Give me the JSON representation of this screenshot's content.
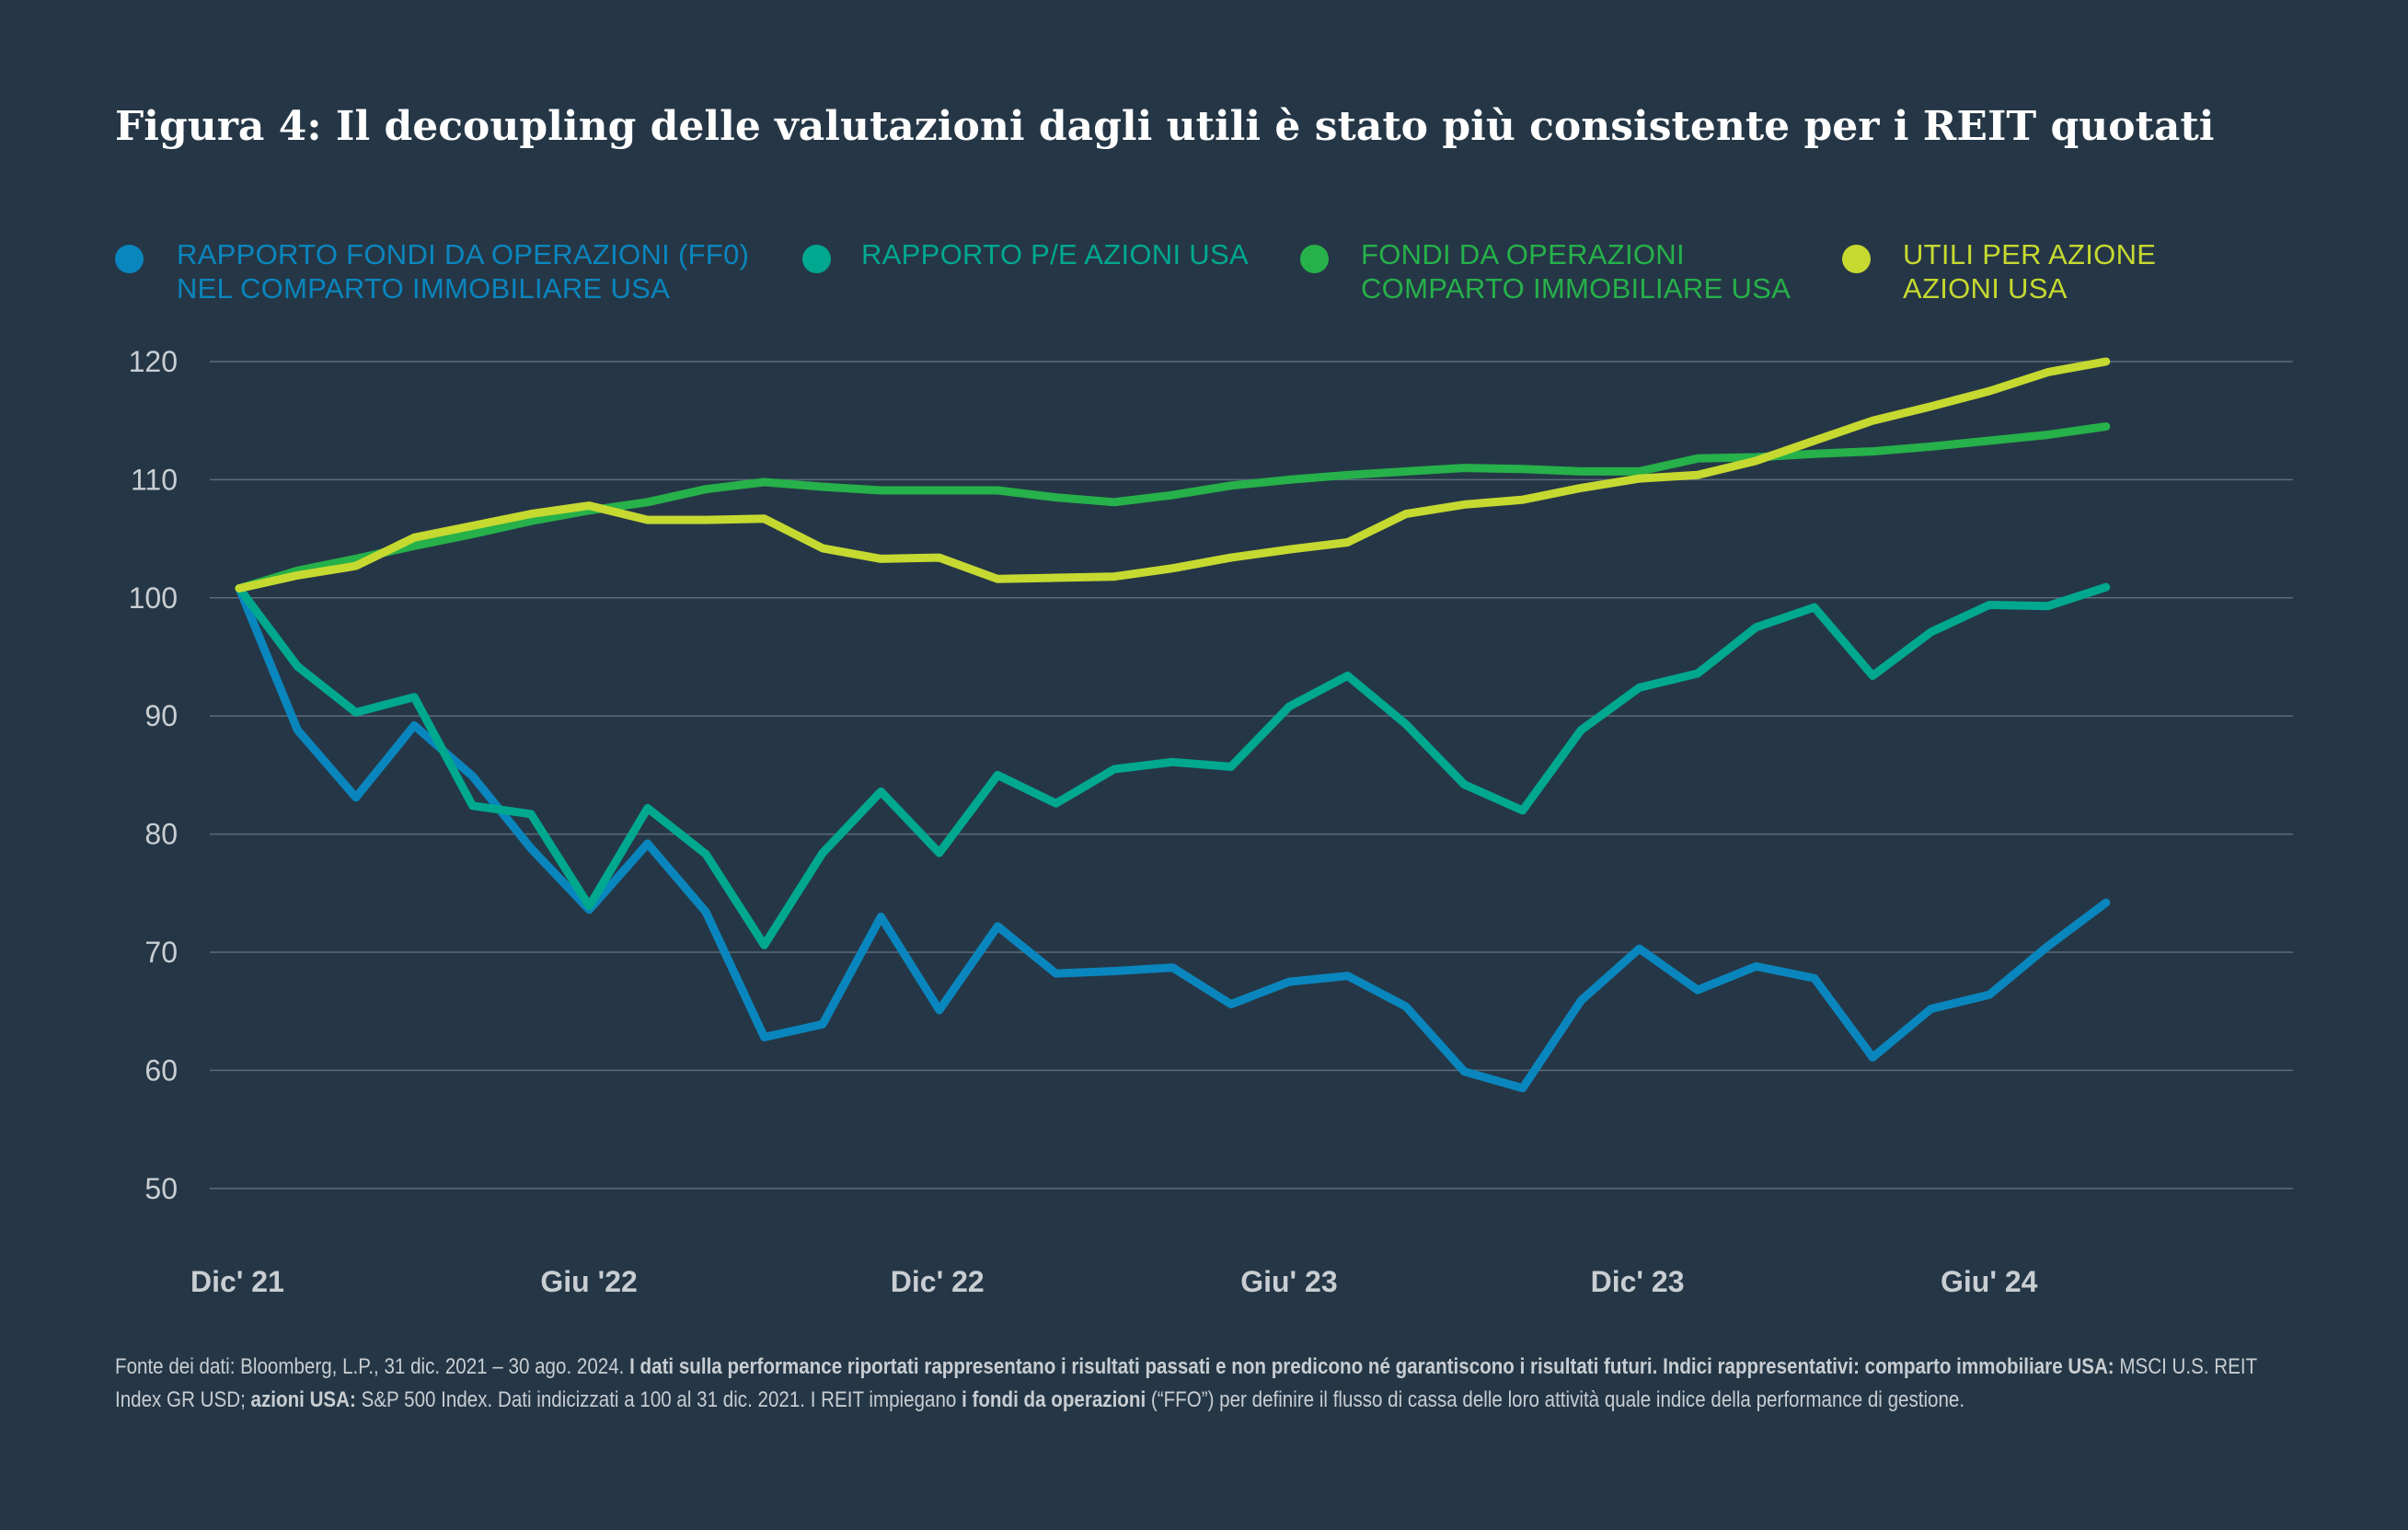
{
  "title": "Figura 4: Il decoupling delle valutazioni dagli utili è stato più consistente per i REIT quotati",
  "legend": [
    {
      "line1": "RAPPORTO FONDI DA OPERAZIONI (FF0)",
      "line2": "NEL COMPARTO IMMOBILIARE USA",
      "color": "#0a86be"
    },
    {
      "line1": "RAPPORTO P/E AZIONI USA",
      "line2": "",
      "color": "#00a88f"
    },
    {
      "line1": "FONDI DA OPERAZIONI",
      "line2": "COMPARTO IMMOBILIARE USA",
      "color": "#26b14a"
    },
    {
      "line1": "UTILI PER AZIONE",
      "line2": "AZIONI USA",
      "color": "#c6d930"
    }
  ],
  "chart_data": {
    "type": "line",
    "title": "Figura 4: Il decoupling delle valutazioni dagli utili è stato più consistente per i REIT quotati",
    "xlabel": "",
    "ylabel": "",
    "ylim": [
      50,
      120
    ],
    "yticks": [
      120,
      110,
      100,
      90,
      80,
      70,
      60,
      50
    ],
    "x_tick_labels": [
      {
        "label": "Dic' 21",
        "index": 0
      },
      {
        "label": "Giu '22",
        "index": 6
      },
      {
        "label": "Dic' 22",
        "index": 12
      },
      {
        "label": "Giu' 23",
        "index": 18
      },
      {
        "label": "Dic' 23",
        "index": 24
      },
      {
        "label": "Giu' 24",
        "index": 30
      }
    ],
    "x": [
      0,
      1,
      2,
      3,
      4,
      5,
      6,
      7,
      8,
      9,
      10,
      11,
      12,
      13,
      14,
      15,
      16,
      17,
      18,
      19,
      20,
      21,
      22,
      23,
      24,
      25,
      26,
      27,
      28,
      29,
      30,
      31,
      32
    ],
    "series": [
      {
        "name": "RAPPORTO FONDI DA OPERAZIONI (FF0) NEL COMPARTO IMMOBILIARE USA",
        "color": "#0a86be",
        "values": [
          100.8,
          88.8,
          83.1,
          89.2,
          84.9,
          78.8,
          73.6,
          79.2,
          73.4,
          62.8,
          63.9,
          73.0,
          65.1,
          72.2,
          68.2,
          68.4,
          68.7,
          65.6,
          67.5,
          68.0,
          65.4,
          59.9,
          58.5,
          65.9,
          70.3,
          66.8,
          68.8,
          67.8,
          61.1,
          65.2,
          66.4,
          70.5,
          74.2
        ]
      },
      {
        "name": "RAPPORTO P/E AZIONI USA",
        "color": "#00a88f",
        "values": [
          100.8,
          94.2,
          90.3,
          91.6,
          82.4,
          81.7,
          73.9,
          82.2,
          78.3,
          70.6,
          78.4,
          83.6,
          78.4,
          85.0,
          82.6,
          85.5,
          86.1,
          85.7,
          90.8,
          93.4,
          89.3,
          84.2,
          82.0,
          88.8,
          92.4,
          93.6,
          97.5,
          99.2,
          93.4,
          97.1,
          99.4,
          99.3,
          100.9
        ]
      },
      {
        "name": "FONDI DA OPERAZIONI COMPARTO IMMOBILIARE USA",
        "color": "#26b14a",
        "values": [
          100.8,
          102.3,
          103.3,
          104.4,
          105.4,
          106.5,
          107.4,
          108.1,
          109.2,
          109.8,
          109.4,
          109.1,
          109.1,
          109.1,
          108.5,
          108.1,
          108.7,
          109.5,
          110.0,
          110.4,
          110.7,
          111.0,
          110.9,
          110.7,
          110.7,
          111.8,
          111.9,
          112.2,
          112.4,
          112.8,
          113.3,
          113.8,
          114.5
        ]
      },
      {
        "name": "UTILI PER AZIONE AZIONI USA",
        "color": "#c6d930",
        "values": [
          100.8,
          101.9,
          102.7,
          105.1,
          106.1,
          107.1,
          107.8,
          106.6,
          106.6,
          106.7,
          104.2,
          103.3,
          103.4,
          101.6,
          101.7,
          101.8,
          102.5,
          103.4,
          104.1,
          104.7,
          107.1,
          107.9,
          108.3,
          109.3,
          110.1,
          110.4,
          111.6,
          113.3,
          115.0,
          116.2,
          117.5,
          119.1,
          120.0
        ]
      }
    ]
  },
  "footnote": {
    "p1": "Fonte dei dati: Bloomberg, L.P., 31 dic. 2021 – 30 ago. 2024. ",
    "b1": "I dati sulla performance riportati rappresentano i risultati passati e non predicono né garantiscono i risultati futuri. Indici rappresentativi: comparto immobiliare USA:",
    "p2": " MSCI U.S. REIT Index GR USD; ",
    "b2": "azioni USA:",
    "p3": " S&P 500 Index. Dati indicizzati a 100 al 31 dic. 2021. I REIT impiegano ",
    "b3": "i fondi da operazioni",
    "p4": " (“FFO”) per definire il flusso di cassa delle loro attività quale indice della performance di gestione."
  }
}
